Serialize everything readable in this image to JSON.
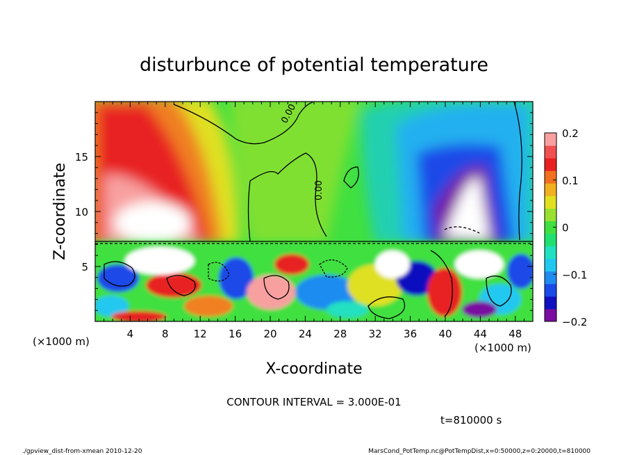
{
  "chart_data": {
    "type": "heatmap",
    "title": "disturbunce of potential temperature",
    "xlabel": "X-coordinate",
    "ylabel": "Z-coordinate",
    "x_unit_left": "(×1000 m)",
    "x_unit_right": "(×1000 m)",
    "xlim": [
      0,
      50
    ],
    "ylim": [
      0,
      20
    ],
    "x_ticks": [
      4,
      8,
      12,
      16,
      20,
      24,
      28,
      32,
      36,
      40,
      44,
      48
    ],
    "y_ticks": [
      5,
      10,
      15
    ],
    "colorbar": {
      "min": -0.2,
      "max": 0.2,
      "ticks": [
        "0.2",
        "0.1",
        "0",
        "−0.1",
        "−0.2"
      ],
      "tick_values": [
        0.2,
        0.1,
        0,
        -0.1,
        -0.2
      ],
      "colors": [
        "#7a0da0",
        "#1010c0",
        "#1a4ae8",
        "#1f8cf0",
        "#20c8f0",
        "#20e0c0",
        "#20e070",
        "#40e040",
        "#9ae030",
        "#e0e020",
        "#f0b020",
        "#f07020",
        "#e82020",
        "#f05050",
        "#f8a0a0"
      ]
    },
    "contour_labels": [
      "0.00",
      "0.00"
    ],
    "contour_interval": "CONTOUR INTERVAL = 3.000E-01",
    "time_label": "t=810000 s",
    "footer_left": "./gpview_dist-from-xmean  2010-12-20",
    "footer_right": "MarsCond_PotTemp.nc@PotTempDist,x=0:50000,z=0:20000,t=810000"
  }
}
